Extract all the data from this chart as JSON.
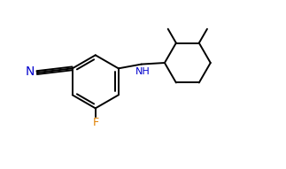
{
  "background_color": "#ffffff",
  "bond_color": "#000000",
  "label_color_N": "#0000cd",
  "label_color_F": "#e08000",
  "label_color_NH": "#0000cd",
  "line_width": 1.4,
  "font_size": 9,
  "figsize": [
    3.23,
    1.91
  ],
  "dpi": 100,
  "xlim": [
    0.0,
    10.0
  ],
  "ylim": [
    0.0,
    6.0
  ]
}
